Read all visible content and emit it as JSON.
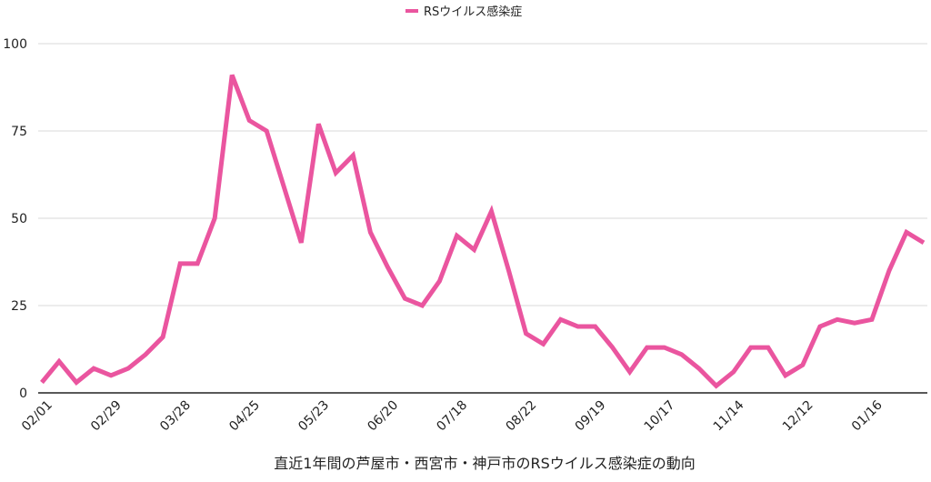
{
  "chart_data": {
    "type": "line",
    "title": "直近1年間の芦屋市・西宮市・神戸市のRSウイルス感染症の動向",
    "xlabel": "",
    "ylabel": "",
    "ylim": [
      0,
      100
    ],
    "yticks": [
      0,
      25,
      50,
      75,
      100
    ],
    "grid": true,
    "legend_position": "top",
    "x_tick_labels": [
      {
        "index": 0,
        "label": "02/01"
      },
      {
        "index": 4,
        "label": "02/29"
      },
      {
        "index": 8,
        "label": "03/28"
      },
      {
        "index": 12,
        "label": "04/25"
      },
      {
        "index": 16,
        "label": "05/23"
      },
      {
        "index": 20,
        "label": "06/20"
      },
      {
        "index": 24,
        "label": "07/18"
      },
      {
        "index": 28,
        "label": "08/22"
      },
      {
        "index": 32,
        "label": "09/19"
      },
      {
        "index": 36,
        "label": "10/17"
      },
      {
        "index": 40,
        "label": "11/14"
      },
      {
        "index": 44,
        "label": "12/12"
      },
      {
        "index": 48,
        "label": "01/16"
      }
    ],
    "series": [
      {
        "name": "RSウイルス感染症",
        "color": "#ea559f",
        "values": [
          3,
          9,
          3,
          7,
          5,
          7,
          11,
          16,
          37,
          37,
          50,
          91,
          78,
          75,
          59,
          43,
          77,
          63,
          68,
          46,
          36,
          27,
          25,
          32,
          45,
          41,
          52,
          35,
          17,
          14,
          21,
          19,
          19,
          13,
          6,
          13,
          13,
          11,
          7,
          2,
          6,
          13,
          13,
          5,
          8,
          19,
          21,
          20,
          21,
          35,
          46,
          43
        ]
      }
    ]
  }
}
